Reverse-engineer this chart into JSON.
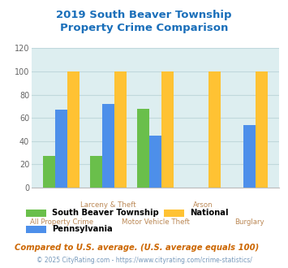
{
  "title": "2019 South Beaver Township\nProperty Crime Comparison",
  "x_positions": [
    0,
    1,
    2,
    3,
    4
  ],
  "sbt_values": [
    27,
    27,
    68,
    0,
    0
  ],
  "national_values": [
    100,
    100,
    100,
    100,
    100
  ],
  "pa_values": [
    67,
    72,
    45,
    0,
    54
  ],
  "sbt_color": "#6abf4b",
  "national_color": "#ffc233",
  "pa_color": "#4d8fea",
  "bg_color": "#ddeef0",
  "title_color": "#1a6fba",
  "xlabel_color": "#bb8855",
  "ylabel_color": "#888888",
  "ylim": [
    0,
    120
  ],
  "yticks": [
    0,
    20,
    40,
    60,
    80,
    100,
    120
  ],
  "bar_width": 0.26,
  "legend_sbt": "South Beaver Township",
  "legend_national": "National",
  "legend_pa": "Pennsylvania",
  "note": "Compared to U.S. average. (U.S. average equals 100)",
  "footer": "© 2025 CityRating.com - https://www.cityrating.com/crime-statistics/",
  "grid_color": "#c0d8dc",
  "xlabels_row1": [
    "",
    "Larceny & Theft",
    "",
    "Arson",
    ""
  ],
  "xlabels_row2": [
    "All Property Crime",
    "",
    "Motor Vehicle Theft",
    "",
    "Burglary"
  ]
}
